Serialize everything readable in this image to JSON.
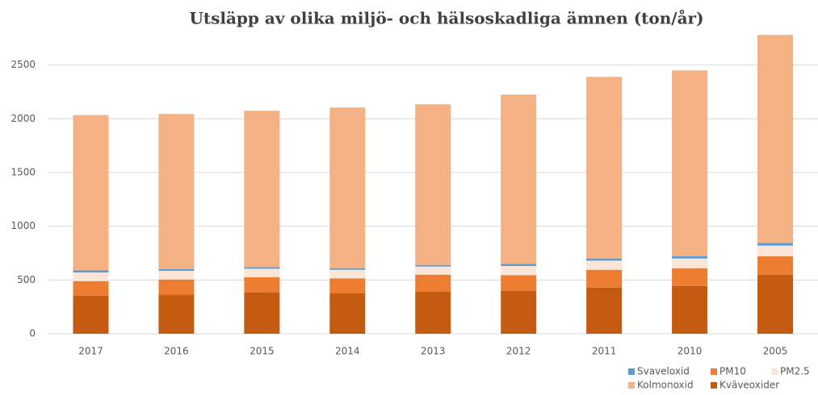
{
  "chart_data": {
    "type": "stacked_bar",
    "title": "Utsläpp av olika miljö- och hälsoskadliga ämnen (ton/år)",
    "categories": [
      "2017",
      "2016",
      "2015",
      "2014",
      "2013",
      "2012",
      "2011",
      "2010",
      "2005"
    ],
    "series": [
      {
        "name": "Kväveoxider",
        "color": "#c55a11",
        "values": [
          355,
          365,
          385,
          375,
          390,
          400,
          430,
          445,
          550
        ]
      },
      {
        "name": "PM10",
        "color": "#ed7d31",
        "values": [
          135,
          140,
          140,
          140,
          160,
          145,
          165,
          165,
          170
        ]
      },
      {
        "name": "PM2.5",
        "color": "#fbe5d6",
        "values": [
          80,
          80,
          80,
          80,
          75,
          85,
          85,
          90,
          100
        ]
      },
      {
        "name": "Svaveloxid",
        "color": "#5b9bd5",
        "values": [
          20,
          15,
          15,
          15,
          15,
          20,
          20,
          20,
          25
        ]
      },
      {
        "name": "Kolmonoxid",
        "color": "#f4b183",
        "values": [
          1445,
          1445,
          1455,
          1495,
          1495,
          1575,
          1690,
          1730,
          1935
        ]
      }
    ],
    "ylim": [
      0,
      3000
    ],
    "yticks": [
      0,
      500,
      1000,
      1500,
      2000,
      2500
    ],
    "grid": true
  }
}
